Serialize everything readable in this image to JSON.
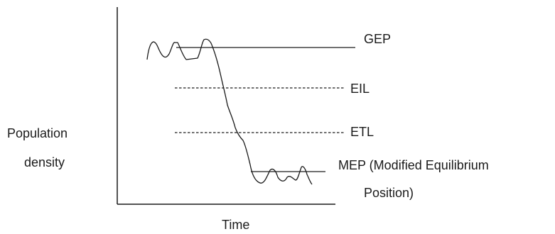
{
  "axes": {
    "y_label_line1": "Population",
    "y_label_line2": "density",
    "x_label": "Time"
  },
  "levels": [
    {
      "id": "gep",
      "label": "GEP"
    },
    {
      "id": "eil",
      "label": "EIL"
    },
    {
      "id": "etl",
      "label": "ETL"
    },
    {
      "id": "mep",
      "label": "MEP (Modified Equilibrium",
      "label_line2": "Position)"
    }
  ],
  "colors": {
    "ink": "#1a1a1a",
    "background": "#ffffff"
  }
}
